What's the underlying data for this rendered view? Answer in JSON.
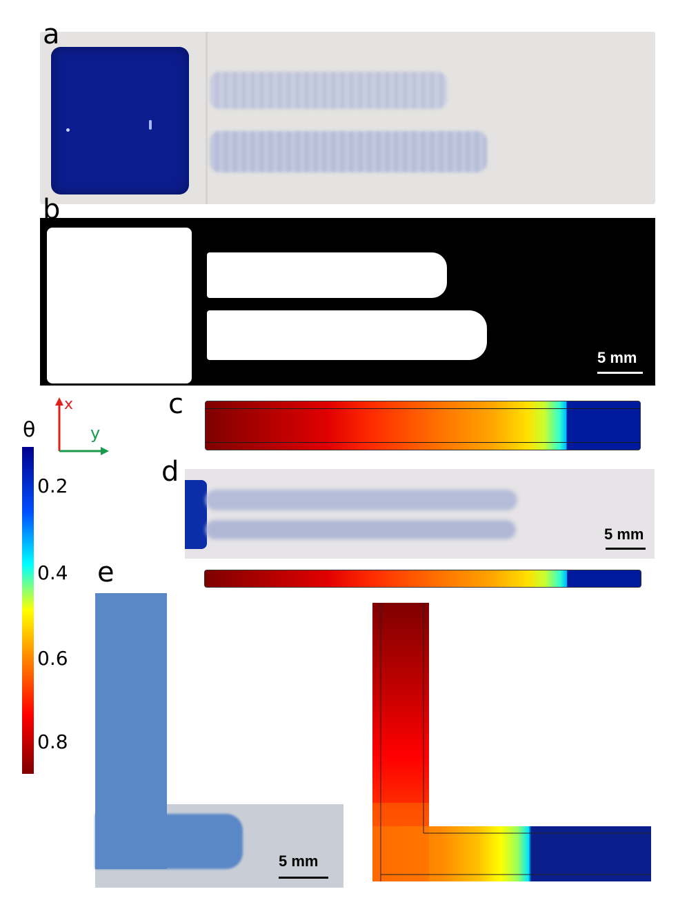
{
  "panels": {
    "a": {
      "label": "a"
    },
    "b": {
      "label": "b",
      "scale": "5 mm"
    },
    "c": {
      "label": "c"
    },
    "d": {
      "label": "d",
      "scale": "5 mm"
    },
    "e": {
      "label": "e",
      "scale": "5 mm"
    }
  },
  "colorbar": {
    "title": "θ",
    "ticks": [
      "0.2",
      "0.4",
      "0.6",
      "0.8"
    ],
    "colormap": [
      "#7f0000",
      "#ff0000",
      "#ff8c00",
      "#ffff00",
      "#00ffff",
      "#0050ff",
      "#00008f"
    ]
  },
  "axes": {
    "x_label": "x",
    "y_label": "y",
    "x_color": "#e0201a",
    "y_color": "#1a9a4a"
  },
  "colors": {
    "ink_blue": "#0a1f8c",
    "paper": "#e6e4e2",
    "photo_blue": "#4f7fc2",
    "binary_white": "#ffffff",
    "binary_black": "#000000"
  }
}
